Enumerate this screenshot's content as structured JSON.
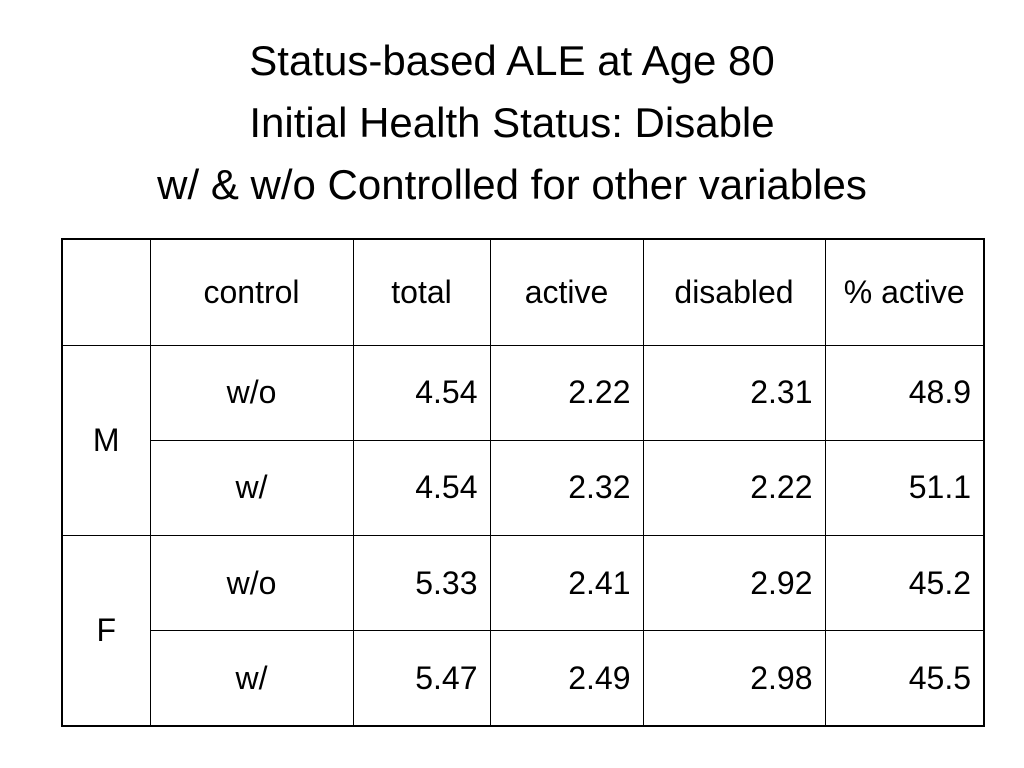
{
  "title": {
    "line1": "Status-based ALE at Age 80",
    "line2": "Initial Health Status:  Disable",
    "line3": "w/ & w/o Controlled for other variables"
  },
  "table": {
    "headers": [
      "",
      "control",
      "total",
      "active",
      "disabled",
      "% active"
    ],
    "groups": [
      {
        "label": "M",
        "rows": [
          {
            "control": "w/o",
            "total": "4.54",
            "active": "2.22",
            "disabled": "2.31",
            "pct_active": "48.9"
          },
          {
            "control": "w/",
            "total": "4.54",
            "active": "2.32",
            "disabled": "2.22",
            "pct_active": "51.1"
          }
        ]
      },
      {
        "label": "F",
        "rows": [
          {
            "control": "w/o",
            "total": "5.33",
            "active": "2.41",
            "disabled": "2.92",
            "pct_active": "45.2"
          },
          {
            "control": "w/",
            "total": "5.47",
            "active": "2.49",
            "disabled": "2.98",
            "pct_active": "45.5"
          }
        ]
      }
    ]
  }
}
